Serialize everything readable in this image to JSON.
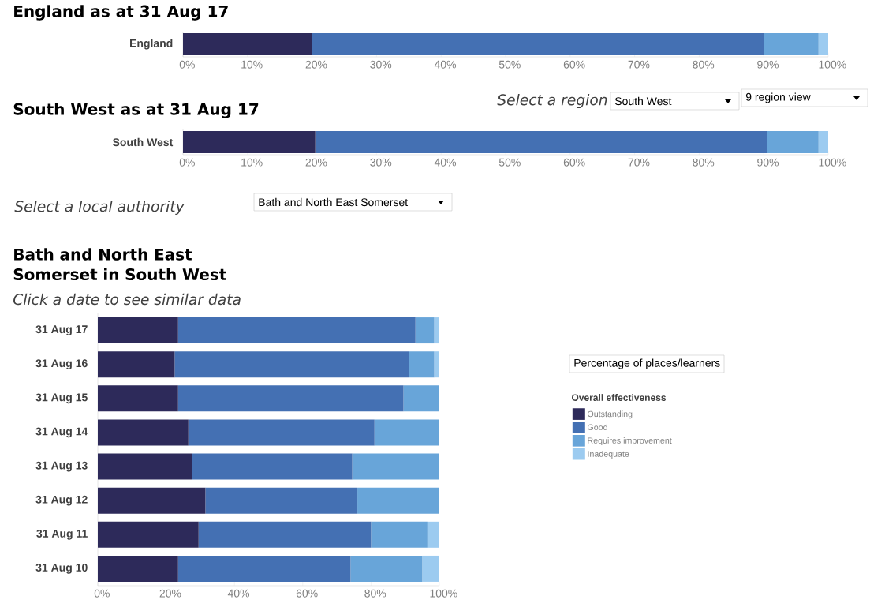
{
  "chart_data": [
    {
      "type": "bar",
      "orientation": "horizontal",
      "stacked": true,
      "title": "England as at 31 Aug 17",
      "categories": [
        "England"
      ],
      "series": [
        {
          "color": "#2d2a5a",
          "values": [
            20
          ]
        },
        {
          "color": "#4470b3",
          "values": [
            70
          ]
        },
        {
          "color": "#68a5d9",
          "values": [
            8.5
          ]
        },
        {
          "color": "#9ccbf0",
          "values": [
            1.5
          ]
        }
      ],
      "xlim": [
        0,
        100
      ],
      "xticks": [
        {
          "value": 0,
          "label": "0%"
        },
        {
          "value": 10,
          "label": "10%"
        },
        {
          "value": 20,
          "label": "20%"
        },
        {
          "value": 30,
          "label": "30%"
        },
        {
          "value": 40,
          "label": "40%"
        },
        {
          "value": 50,
          "label": "50%"
        },
        {
          "value": 60,
          "label": "60%"
        },
        {
          "value": 70,
          "label": "70%"
        },
        {
          "value": 80,
          "label": "80%"
        },
        {
          "value": 90,
          "label": "90%"
        },
        {
          "value": 100,
          "label": "100%"
        }
      ]
    },
    {
      "type": "bar",
      "orientation": "horizontal",
      "stacked": true,
      "title": "South West as at 31 Aug 17",
      "categories": [
        "South West"
      ],
      "series": [
        {
          "color": "#2d2a5a",
          "values": [
            20.5
          ]
        },
        {
          "color": "#4470b3",
          "values": [
            70
          ]
        },
        {
          "color": "#68a5d9",
          "values": [
            8
          ]
        },
        {
          "color": "#9ccbf0",
          "values": [
            1.5
          ]
        }
      ],
      "xlim": [
        0,
        100
      ],
      "xticks": [
        {
          "value": 0,
          "label": "0%"
        },
        {
          "value": 10,
          "label": "10%"
        },
        {
          "value": 20,
          "label": "20%"
        },
        {
          "value": 30,
          "label": "30%"
        },
        {
          "value": 40,
          "label": "40%"
        },
        {
          "value": 50,
          "label": "50%"
        },
        {
          "value": 60,
          "label": "60%"
        },
        {
          "value": 70,
          "label": "70%"
        },
        {
          "value": 80,
          "label": "80%"
        },
        {
          "value": 90,
          "label": "90%"
        },
        {
          "value": 100,
          "label": "100%"
        }
      ],
      "annotations": [
        "Select a region",
        "South West",
        "9 region view"
      ]
    },
    {
      "type": "bar",
      "orientation": "horizontal",
      "stacked": true,
      "title": "Bath and North East Somerset in South West",
      "subtitle": "Click a date to see similar data",
      "categories": [
        "31 Aug 17",
        "31 Aug 16",
        "31 Aug 15",
        "31 Aug 14",
        "31 Aug 13",
        "31 Aug 12",
        "31 Aug 11",
        "31 Aug 10"
      ],
      "series": [
        {
          "name": "Outstanding",
          "color": "#2d2a5a",
          "values": [
            23.5,
            22.5,
            23.5,
            26.5,
            27.5,
            31.5,
            29.5,
            23.5
          ]
        },
        {
          "name": "Good",
          "color": "#4470b3",
          "values": [
            69.5,
            68.5,
            66,
            54.5,
            47,
            44.5,
            50.5,
            50.5
          ]
        },
        {
          "name": "Requires improvement",
          "color": "#68a5d9",
          "values": [
            5.5,
            7.5,
            10.5,
            19,
            25.5,
            24,
            16.5,
            21
          ]
        },
        {
          "name": "Inadequate",
          "color": "#9ccbf0",
          "values": [
            1.5,
            1.5,
            0,
            0,
            0,
            0,
            3.5,
            5
          ]
        }
      ],
      "xlim": [
        0,
        100
      ],
      "xticks": [
        {
          "value": 0,
          "label": "0%"
        },
        {
          "value": 20,
          "label": "20%"
        },
        {
          "value": 40,
          "label": "40%"
        },
        {
          "value": 60,
          "label": "60%"
        },
        {
          "value": 80,
          "label": "80%"
        },
        {
          "value": 100,
          "label": "100%"
        }
      ],
      "legend": "right",
      "legend_title": "Overall effectiveness",
      "annotations": [
        "Select a local authority",
        "Bath and North East Somerset",
        "Percentage of places/learners"
      ]
    }
  ]
}
